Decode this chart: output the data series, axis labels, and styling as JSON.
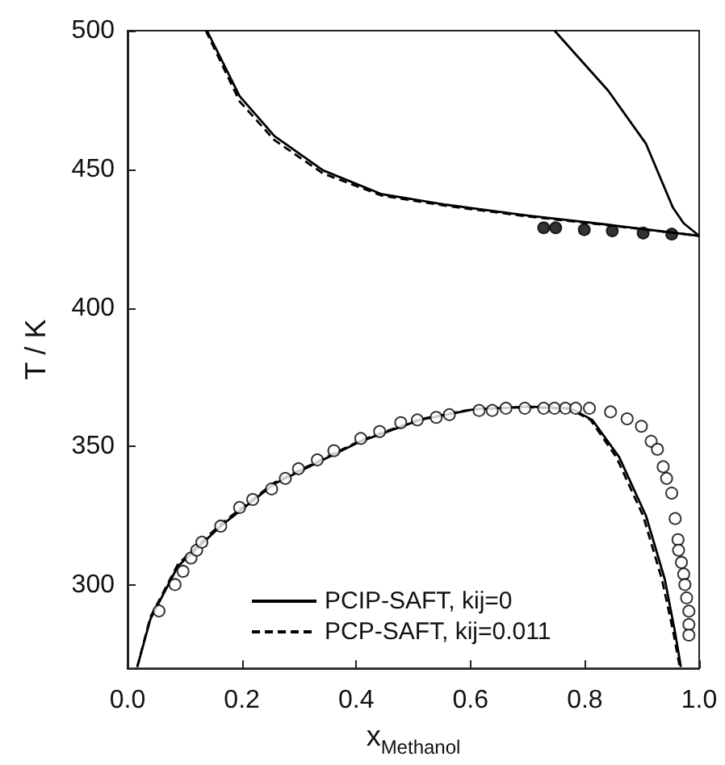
{
  "chart_data": {
    "type": "line",
    "xlabel": "x$_{Methanol}$",
    "ylabel": "T / K",
    "xlim": [
      0,
      1
    ],
    "xticks": [
      {
        "value": 0,
        "label": "0.0"
      },
      {
        "value": 0.2,
        "label": "0.2"
      },
      {
        "value": 0.4,
        "label": "0.4"
      },
      {
        "value": 0.6,
        "label": "0.6"
      },
      {
        "value": 0.8,
        "label": "0.8"
      },
      {
        "value": 1,
        "label": "1.0"
      }
    ],
    "ylim": [
      270,
      500
    ],
    "yticks": [
      300,
      350,
      400,
      450,
      500
    ],
    "grid": false,
    "legend": "bottom",
    "series": [
      {
        "name": "PCIP-SAFT, kij=0",
        "color": "#000000",
        "line_style": "solid",
        "marker": "none",
        "x": [
          0.017,
          0.04,
          0.088,
          0.163,
          0.257,
          0.408,
          0.511,
          0.605,
          0.7,
          0.775,
          0.813,
          0.86,
          0.907,
          0.94,
          0.958,
          0.968
        ],
        "values": [
          270.5,
          287.8,
          306.8,
          321.3,
          336.6,
          351.9,
          359.6,
          363.4,
          364.4,
          363.8,
          359.6,
          346.2,
          325,
          302,
          282.8,
          270.5
        ]
      },
      {
        "color": "#000000",
        "line_style": "solid",
        "marker": "none",
        "x": [
          0.139,
          0.196,
          0.257,
          0.342,
          0.445,
          0.558,
          0.7,
          0.841,
          1.0
        ],
        "values": [
          500,
          476.4,
          462,
          449.6,
          441,
          437.2,
          433.3,
          430,
          426
        ]
      },
      {
        "color": "#000000",
        "line_style": "solid",
        "marker": "none",
        "x": [
          0.747,
          0.841,
          0.907,
          0.954,
          0.973,
          1.0
        ],
        "values": [
          500,
          478.3,
          459.2,
          436.2,
          430.5,
          426
        ]
      },
      {
        "name": "PCP-SAFT, kij=0.011",
        "color": "#000000",
        "line_style": "dashed",
        "marker": "none",
        "x": [
          0.017,
          0.04,
          0.088,
          0.163,
          0.257,
          0.408,
          0.511,
          0.605,
          0.7,
          0.775,
          0.81,
          0.855,
          0.902,
          0.935,
          0.955,
          0.966
        ],
        "values": [
          270.5,
          288.5,
          307.5,
          322,
          337,
          352.2,
          359.8,
          363.5,
          364.2,
          363.5,
          359.6,
          346.2,
          325,
          302,
          282.8,
          270.5
        ]
      },
      {
        "color": "#000000",
        "line_style": "dashed",
        "marker": "none",
        "x": [
          0.137,
          0.196,
          0.257,
          0.342,
          0.445,
          0.558,
          0.7,
          0.841,
          1.0
        ],
        "values": [
          500,
          474.5,
          460.5,
          448.5,
          440.5,
          436.8,
          433,
          429.8,
          426
        ]
      },
      {
        "type": "scatter",
        "color": "#ffffff",
        "marker": "circle",
        "x": [
          0.055,
          0.083,
          0.097,
          0.111,
          0.121,
          0.13,
          0.163,
          0.196,
          0.219,
          0.252,
          0.276,
          0.299,
          0.332,
          0.361,
          0.408,
          0.441,
          0.478,
          0.507,
          0.54,
          0.563,
          0.615,
          0.638,
          0.662,
          0.695,
          0.728,
          0.747,
          0.766,
          0.784,
          0.808,
          0.845,
          0.874,
          0.899,
          0.916,
          0.927,
          0.937,
          0.943,
          0.952,
          0.958,
          0.963,
          0.964,
          0.969,
          0.973,
          0.975,
          0.978,
          0.982,
          0.982,
          0.982
        ],
        "values": [
          290.7,
          300.2,
          305,
          309.8,
          312.6,
          315.5,
          321.3,
          328,
          330.9,
          334.7,
          338.5,
          342,
          345.2,
          348.5,
          352.9,
          355.4,
          358.6,
          359.6,
          360.5,
          361.5,
          363,
          363,
          363.8,
          363.8,
          363.8,
          363.8,
          363.8,
          363.8,
          363.8,
          362.5,
          360,
          357.3,
          351.9,
          349,
          342.7,
          338.5,
          333.2,
          324,
          316.4,
          312.6,
          308.2,
          304,
          300.2,
          295.4,
          290.6,
          285.8,
          282
        ]
      },
      {
        "type": "scatter",
        "color": "#000000",
        "marker": "circle",
        "x": [
          0.728,
          0.749,
          0.799,
          0.848,
          0.902,
          0.952
        ],
        "values": [
          428.9,
          428.9,
          428.2,
          427.8,
          427.0,
          426.6
        ]
      }
    ]
  }
}
